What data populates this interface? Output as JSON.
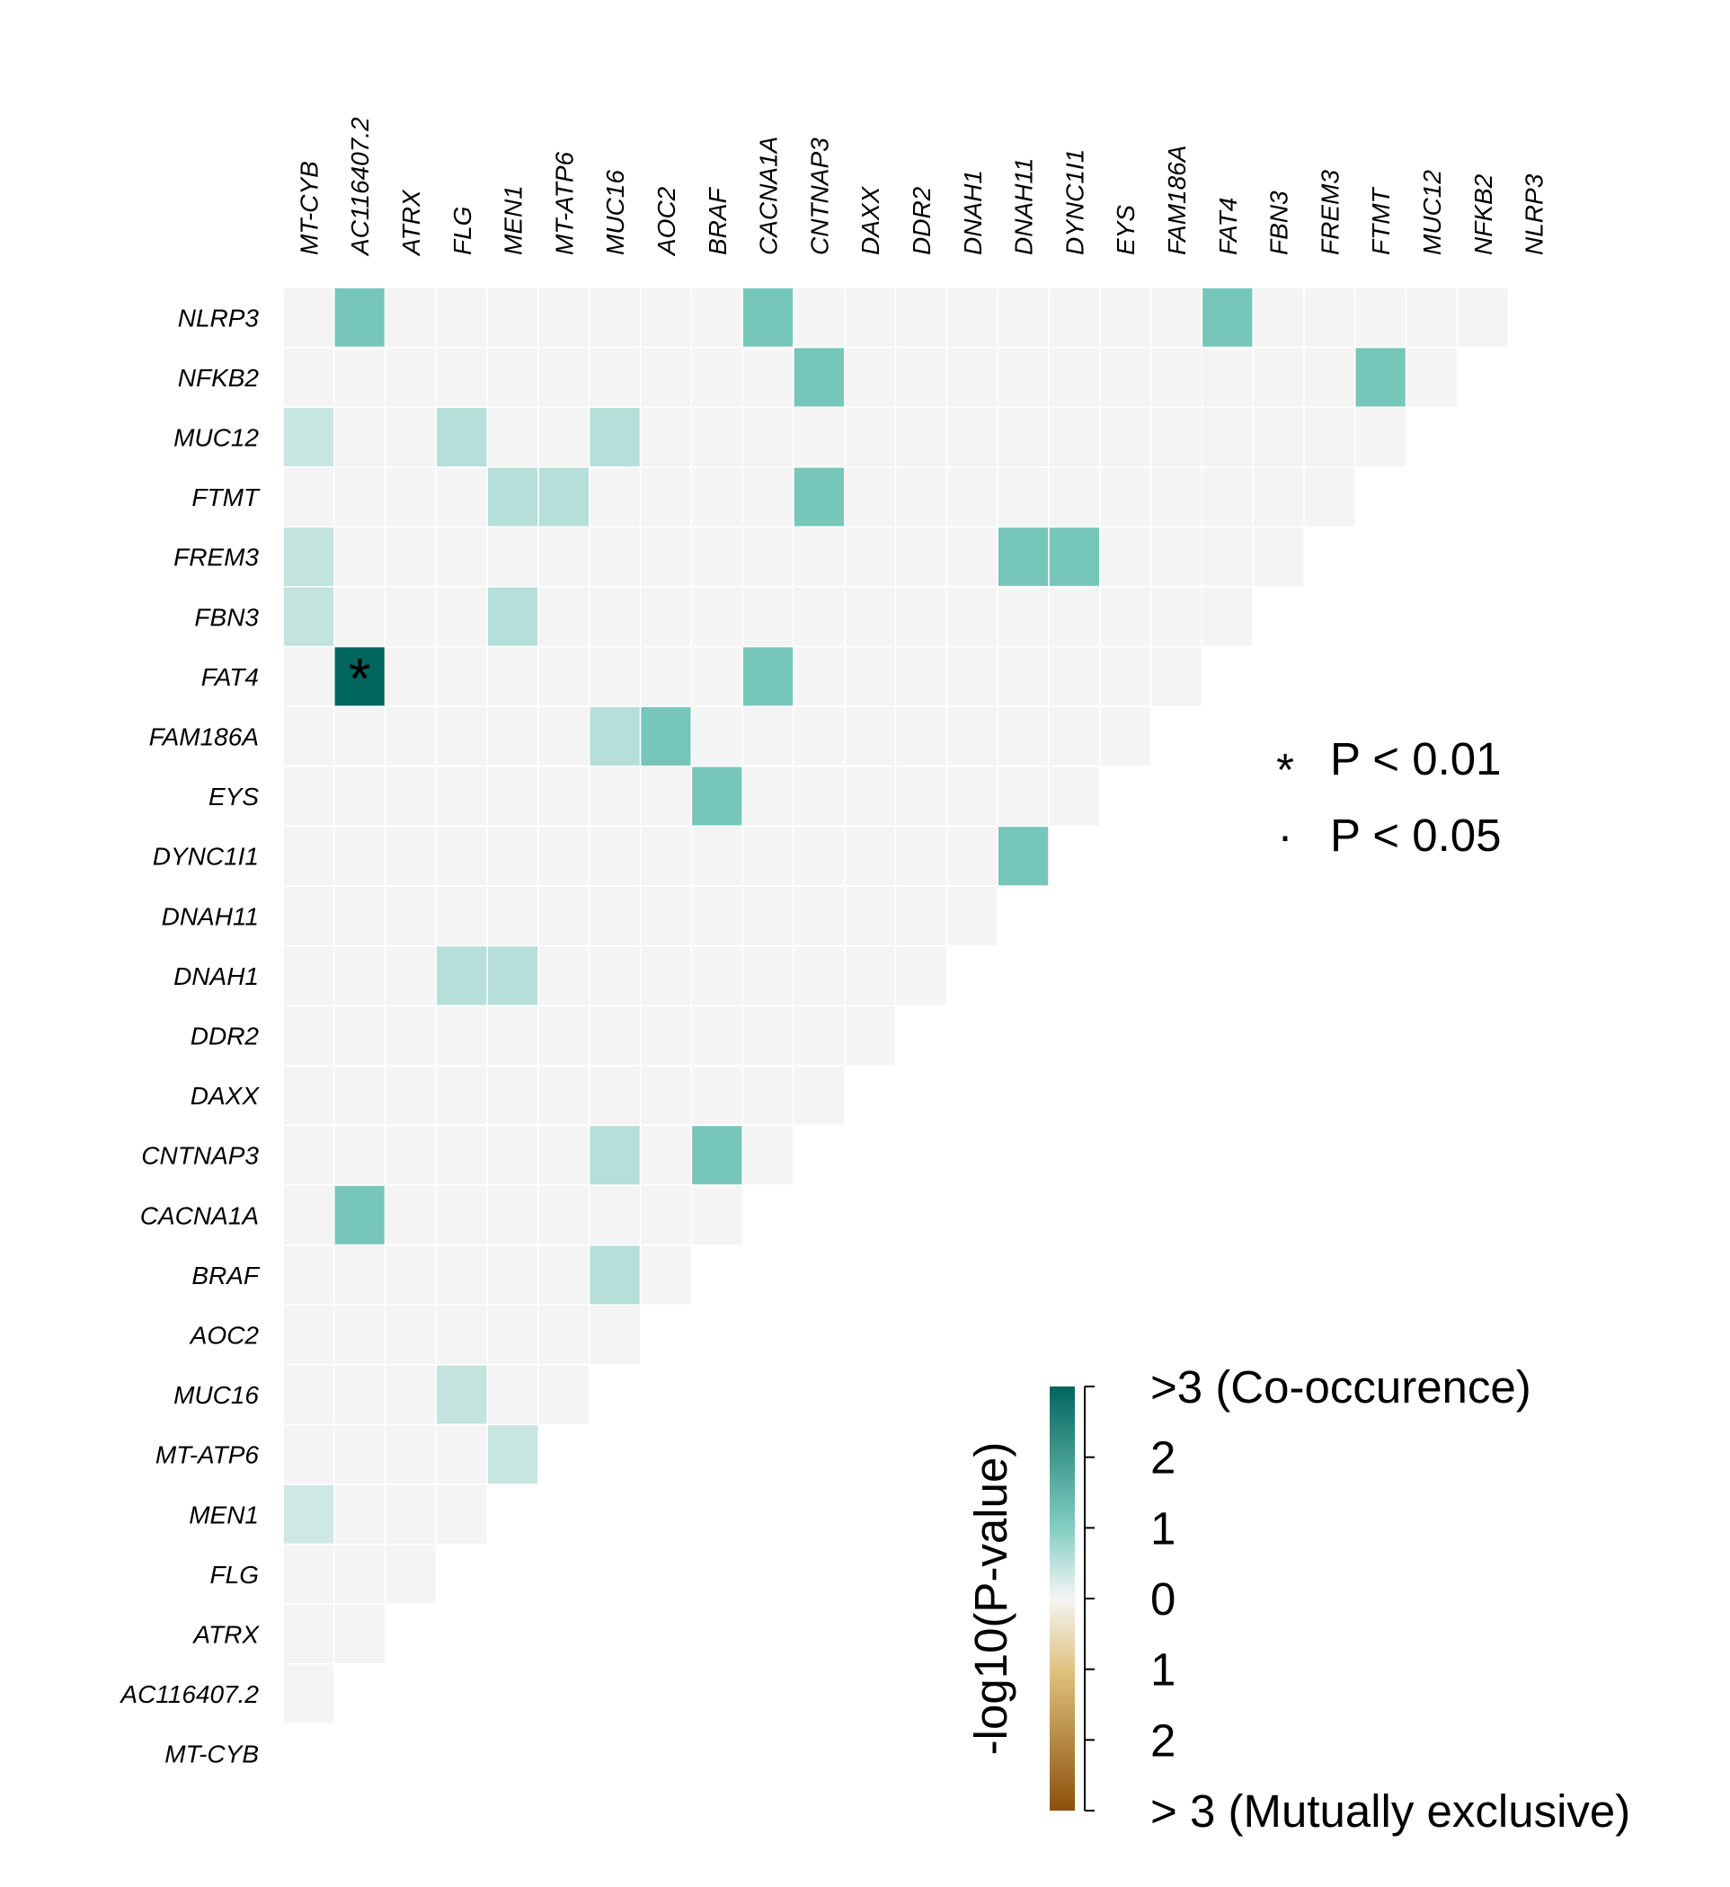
{
  "chart_data": {
    "type": "heatmap",
    "columns": [
      "MT-CYB",
      "AC116407.2",
      "ATRX",
      "FLG",
      "MEN1",
      "MT-ATP6",
      "MUC16",
      "AOC2",
      "BRAF",
      "CACNA1A",
      "CNTNAP3",
      "DAXX",
      "DDR2",
      "DNAH1",
      "DNAH11",
      "DYNC1I1",
      "EYS",
      "FAM186A",
      "FAT4",
      "FBN3",
      "FREM3",
      "FTMT",
      "MUC12",
      "NFKB2",
      "NLRP3"
    ],
    "rows": [
      "NLRP3",
      "NFKB2",
      "MUC12",
      "FTMT",
      "FREM3",
      "FBN3",
      "FAT4",
      "FAM186A",
      "EYS",
      "DYNC1I1",
      "DNAH11",
      "DNAH1",
      "DDR2",
      "DAXX",
      "CNTNAP3",
      "CACNA1A",
      "BRAF",
      "AOC2",
      "MUC16",
      "MT-ATP6",
      "MEN1",
      "FLG",
      "ATRX",
      "AC116407.2",
      "MT-CYB"
    ],
    "cells": [
      {
        "row": "NLRP3",
        "col": "AC116407.2",
        "value": 1.2
      },
      {
        "row": "NLRP3",
        "col": "CACNA1A",
        "value": 1.2
      },
      {
        "row": "NLRP3",
        "col": "FAT4",
        "value": 1.2
      },
      {
        "row": "NFKB2",
        "col": "CNTNAP3",
        "value": 1.2
      },
      {
        "row": "NFKB2",
        "col": "FTMT",
        "value": 1.2
      },
      {
        "row": "MUC12",
        "col": "MT-CYB",
        "value": 0.7
      },
      {
        "row": "MUC12",
        "col": "FLG",
        "value": 1.0
      },
      {
        "row": "MUC12",
        "col": "MUC16",
        "value": 1.0
      },
      {
        "row": "FTMT",
        "col": "MEN1",
        "value": 1.0
      },
      {
        "row": "FTMT",
        "col": "MT-ATP6",
        "value": 1.0
      },
      {
        "row": "FTMT",
        "col": "CNTNAP3",
        "value": 1.2
      },
      {
        "row": "FREM3",
        "col": "MT-CYB",
        "value": 0.8
      },
      {
        "row": "FREM3",
        "col": "DNAH11",
        "value": 1.2
      },
      {
        "row": "FREM3",
        "col": "DYNC1I1",
        "value": 1.2
      },
      {
        "row": "FBN3",
        "col": "MT-CYB",
        "value": 0.8
      },
      {
        "row": "FBN3",
        "col": "MEN1",
        "value": 1.0
      },
      {
        "row": "FAT4",
        "col": "AC116407.2",
        "value": 3.0,
        "marker": "*"
      },
      {
        "row": "FAT4",
        "col": "CACNA1A",
        "value": 1.2
      },
      {
        "row": "FAM186A",
        "col": "MUC16",
        "value": 1.0
      },
      {
        "row": "FAM186A",
        "col": "AOC2",
        "value": 1.2
      },
      {
        "row": "EYS",
        "col": "BRAF",
        "value": 1.2
      },
      {
        "row": "DYNC1I1",
        "col": "DNAH11",
        "value": 1.2
      },
      {
        "row": "DNAH1",
        "col": "FLG",
        "value": 1.0
      },
      {
        "row": "DNAH1",
        "col": "MEN1",
        "value": 1.0
      },
      {
        "row": "CNTNAP3",
        "col": "MUC16",
        "value": 1.0
      },
      {
        "row": "CNTNAP3",
        "col": "BRAF",
        "value": 1.2
      },
      {
        "row": "CACNA1A",
        "col": "AC116407.2",
        "value": 1.2
      },
      {
        "row": "BRAF",
        "col": "MUC16",
        "value": 1.0
      },
      {
        "row": "MUC16",
        "col": "FLG",
        "value": 0.8
      },
      {
        "row": "MT-ATP6",
        "col": "MEN1",
        "value": 0.7
      },
      {
        "row": "MEN1",
        "col": "MT-CYB",
        "value": 0.6
      }
    ],
    "default_cell_color": "#f4f4f4",
    "significance_legend": [
      {
        "symbol": "*",
        "label": "P < 0.01"
      },
      {
        "symbol": "·",
        "label": "P < 0.05"
      }
    ],
    "colorbar": {
      "title": "-log10(P-value)",
      "ticks": [
        ">3 (Co-occurence)",
        "2",
        "1",
        "0",
        "1",
        "2",
        "> 3 (Mutually exclusive)"
      ],
      "range": [
        -3,
        3
      ],
      "colors": {
        "co_occurrence_high": "#01665e",
        "co_occurrence_mid": "#80cdc1",
        "neutral": "#f5f5f5",
        "exclusive_mid": "#dfc27d",
        "exclusive_high": "#8c510a"
      }
    }
  }
}
